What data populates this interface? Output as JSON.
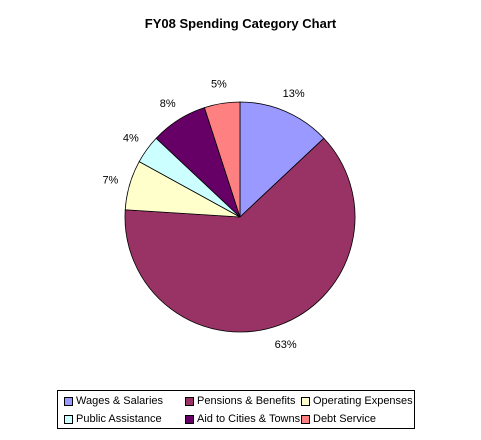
{
  "chart_data": {
    "type": "pie",
    "title": "FY08 Spending Category Chart",
    "categories": [
      "Wages & Salaries",
      "Pensions & Benefits",
      "Operating Expenses",
      "Public Assistance",
      "Aid to Cities & Towns",
      "Debt Service"
    ],
    "values": [
      13,
      63,
      7,
      4,
      8,
      5
    ],
    "labels": [
      "13%",
      "63%",
      "7%",
      "4%",
      "8%",
      "5%"
    ],
    "colors": [
      "#9999FF",
      "#993366",
      "#FFFFCC",
      "#CCFFFF",
      "#660066",
      "#FF8080"
    ],
    "legend_position": "bottom"
  }
}
